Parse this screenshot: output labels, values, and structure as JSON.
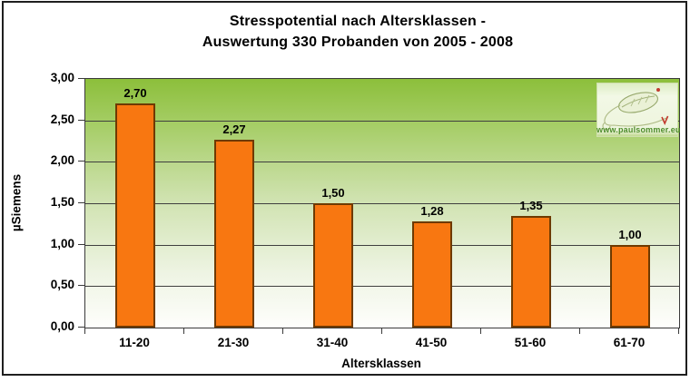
{
  "title": {
    "line1": "Stresspotential nach Altersklassen -",
    "line2": "Auswertung 330 Probanden von 2005 - 2008"
  },
  "chart_data": {
    "type": "bar",
    "title": "Stresspotential nach Altersklassen - Auswertung 330 Probanden von 2005 - 2008",
    "categories": [
      "11-20",
      "21-30",
      "31-40",
      "41-50",
      "51-60",
      "61-70"
    ],
    "values": [
      2.7,
      2.27,
      1.5,
      1.28,
      1.35,
      1.0
    ],
    "value_labels": [
      "2,70",
      "2,27",
      "1,50",
      "1,28",
      "1,35",
      "1,00"
    ],
    "xlabel": "Altersklassen",
    "ylabel": "µSiemens",
    "ylim": [
      0,
      3
    ],
    "ytick_step": 0.5,
    "ytick_labels": [
      "0,00",
      "0,50",
      "1,00",
      "1,50",
      "2,00",
      "2,50",
      "3,00"
    ],
    "grid": true,
    "legend": "none",
    "colors": {
      "bar_fill": "#F87711",
      "bar_border": "#6E3A00",
      "plot_bg_top": "#8CBF3B",
      "plot_bg_bottom": "#FEFEFC",
      "gridline": "#3F3F3F",
      "text": "#000000"
    }
  },
  "logo": {
    "text": "www.paulsommer.eu",
    "bg": "#EFF5DF",
    "text_color": "#4D8C2A",
    "accent_red": "#C23B2F"
  }
}
